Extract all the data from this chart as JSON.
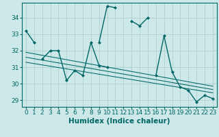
{
  "xlabel": "Humidex (Indice chaleur)",
  "bg_color": "#cce8e8",
  "line_color": "#006666",
  "grid_color": "#aacccc",
  "x_ticks": [
    0,
    1,
    2,
    3,
    4,
    5,
    6,
    7,
    8,
    9,
    10,
    11,
    12,
    13,
    14,
    15,
    16,
    17,
    18,
    19,
    20,
    21,
    22,
    23
  ],
  "y_ticks": [
    29,
    30,
    31,
    32,
    33,
    34
  ],
  "ylim": [
    28.6,
    34.9
  ],
  "xlim": [
    -0.5,
    23.5
  ],
  "series1_segments": [
    {
      "x": [
        0,
        1
      ],
      "y": [
        33.2,
        32.5
      ]
    },
    {
      "x": [
        9,
        10,
        11
      ],
      "y": [
        32.5,
        34.7,
        34.6
      ]
    },
    {
      "x": [
        13,
        14,
        15
      ],
      "y": [
        33.8,
        33.5,
        34.0
      ]
    }
  ],
  "series2_segments": [
    {
      "x": [
        2,
        3,
        4,
        5,
        6,
        7,
        8,
        9,
        10
      ],
      "y": [
        31.5,
        32.0,
        32.0,
        30.2,
        30.8,
        30.5,
        32.5,
        31.1,
        31.0
      ]
    },
    {
      "x": [
        16,
        17,
        18,
        19,
        20,
        21,
        22,
        23
      ],
      "y": [
        30.5,
        32.9,
        30.7,
        29.8,
        29.6,
        28.9,
        29.3,
        29.1
      ]
    }
  ],
  "trend_lines": [
    {
      "x": [
        0,
        23
      ],
      "y": [
        31.9,
        29.85
      ]
    },
    {
      "x": [
        0,
        23
      ],
      "y": [
        31.6,
        29.65
      ]
    },
    {
      "x": [
        0,
        23
      ],
      "y": [
        31.3,
        29.45
      ]
    }
  ],
  "tick_fontsize": 6.5,
  "label_fontsize": 7.5,
  "linewidth": 1.0,
  "markersize": 2.5
}
